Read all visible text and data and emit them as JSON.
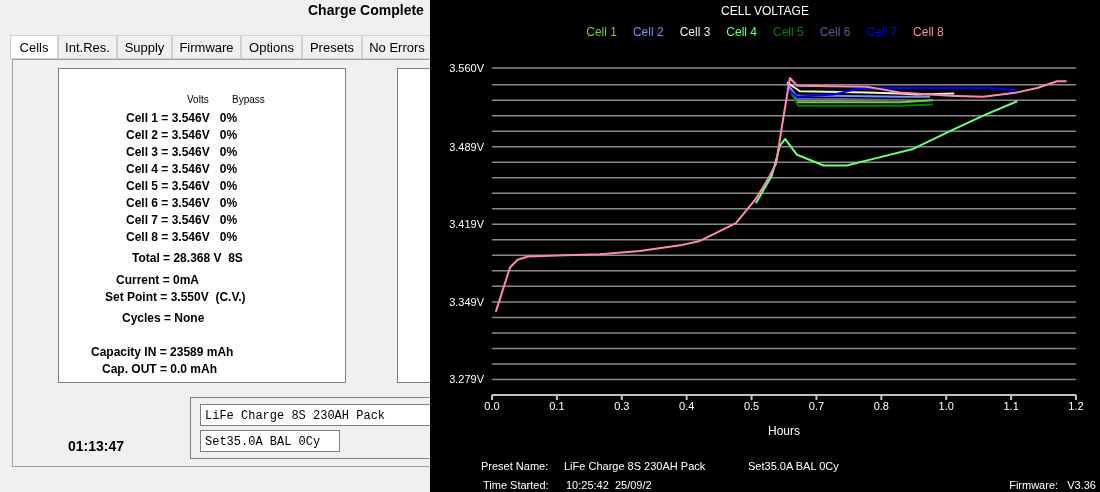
{
  "chart_data": [
    {
      "type": "other",
      "title": "Charge Complete",
      "annotations": [
        "Cells",
        "Int.Res.",
        "Supply",
        "Firmware",
        "Options",
        "Presets",
        "No Errors",
        "Volts",
        "Bypass",
        "Cell 1 = 3.546V   0%",
        "Cell 2 = 3.546V   0%",
        "Cell 3 = 3.546V   0%",
        "Cell 4 = 3.546V   0%",
        "Cell 5 = 3.546V   0%",
        "Cell 6 = 3.546V   0%",
        "Cell 7 = 3.546V   0%",
        "Cell 8 = 3.546V   0%",
        "Total = 28.368 V  8S",
        "Current = 0mA",
        "Set Point = 3.550V  (C.V.)",
        "Cycles = None",
        "Capacity IN = 23589 mAh",
        "Cap. OUT = 0.0 mAh",
        "LiFe Charge 8S 230AH Pack",
        "Set35.0A BAL 0Cy",
        "01:13:47"
      ]
    },
    {
      "type": "line",
      "title": "CELL VOLTAGE",
      "xlabel": "Hours",
      "legend": "top",
      "grid": "y",
      "xlim": [
        0,
        1.233
      ],
      "xticks": [
        {
          "value": 0,
          "label": "0.0"
        },
        {
          "value": 0.137,
          "label": "0.1"
        },
        {
          "value": 0.274,
          "label": "0.3"
        },
        {
          "value": 0.411,
          "label": "0.4"
        },
        {
          "value": 0.548,
          "label": "0.5"
        },
        {
          "value": 0.685,
          "label": "0.7"
        },
        {
          "value": 0.822,
          "label": "0.8"
        },
        {
          "value": 0.959,
          "label": "1.0"
        },
        {
          "value": 1.096,
          "label": "1.1"
        },
        {
          "value": 1.233,
          "label": "1.2"
        }
      ],
      "ylim": [
        3.265,
        3.56
      ],
      "yticks": [
        {
          "value": 3.279,
          "label": "3.279V"
        },
        {
          "value": 3.293,
          "label": null
        },
        {
          "value": 3.307,
          "label": null
        },
        {
          "value": 3.321,
          "label": null
        },
        {
          "value": 3.335,
          "label": null
        },
        {
          "value": 3.349,
          "label": "3.349V"
        },
        {
          "value": 3.363,
          "label": null
        },
        {
          "value": 3.377,
          "label": null
        },
        {
          "value": 3.391,
          "label": null
        },
        {
          "value": 3.405,
          "label": null
        },
        {
          "value": 3.419,
          "label": "3.419V"
        },
        {
          "value": 3.433,
          "label": null
        },
        {
          "value": 3.447,
          "label": null
        },
        {
          "value": 3.461,
          "label": null
        },
        {
          "value": 3.475,
          "label": null
        },
        {
          "value": 3.489,
          "label": "3.489V"
        },
        {
          "value": 3.503,
          "label": null
        },
        {
          "value": 3.517,
          "label": null
        },
        {
          "value": 3.531,
          "label": null
        },
        {
          "value": 3.545,
          "label": null
        },
        {
          "value": 3.56,
          "label": "3.560V"
        }
      ],
      "annotations": [
        "Preset Name:",
        "LiFe Charge 8S 230AH Pack",
        "Set35.0A BAL 0Cy",
        "Time Started:",
        "10:25:42  25/09/2",
        "Firmware:   V3.36"
      ],
      "series": [
        {
          "name": "Cell 1",
          "color": "#7ccd32",
          "x": [
            0.625,
            0.644,
            0.72,
            0.861,
            0.931
          ],
          "values": [
            3.544,
            3.529,
            3.529,
            3.529,
            3.531
          ]
        },
        {
          "name": "Cell 2",
          "color": "#7b8fe8",
          "x": [
            0.623,
            0.642,
            0.72,
            0.861,
            0.925
          ],
          "values": [
            3.546,
            3.535,
            3.535,
            3.534,
            3.534
          ]
        },
        {
          "name": "Cell 3",
          "color": "#f0f0e0",
          "x": [
            0.623,
            0.65,
            0.791,
            0.861,
            0.897,
            0.976
          ],
          "values": [
            3.547,
            3.539,
            3.538,
            3.537,
            3.536,
            3.537
          ]
        },
        {
          "name": "Cell 4",
          "color": "#66ff80",
          "x": [
            0.557,
            0.591,
            0.608,
            0.619,
            0.643,
            0.7,
            0.749,
            0.805,
            0.889,
            0.967,
            1.037,
            1.109
          ],
          "values": [
            3.438,
            3.463,
            3.49,
            3.496,
            3.482,
            3.472,
            3.472,
            3.478,
            3.487,
            3.503,
            3.517,
            3.53
          ]
        },
        {
          "name": "Cell 5",
          "color": "#008000",
          "x": [
            0.627,
            0.647,
            0.72,
            0.861,
            0.931
          ],
          "values": [
            3.541,
            3.526,
            3.526,
            3.526,
            3.527
          ]
        },
        {
          "name": "Cell 6",
          "color": "#5a5aa0",
          "x": [
            0.624,
            0.645,
            0.74,
            0.873
          ],
          "values": [
            3.543,
            3.532,
            3.532,
            3.531
          ]
        },
        {
          "name": "Cell 7",
          "color": "#0000ff",
          "x": [
            0.621,
            0.644,
            0.72,
            0.771,
            0.825,
            1.051,
            1.109
          ],
          "values": [
            3.542,
            3.534,
            3.536,
            3.541,
            3.542,
            3.542,
            3.54
          ]
        },
        {
          "name": "Cell 8",
          "color": "#ff88b0",
          "x": [
            0.008,
            0.038,
            0.054,
            0.076,
            0.154,
            0.228,
            0.312,
            0.397,
            0.439,
            0.515,
            0.557,
            0.583,
            0.6,
            0.612,
            0.629,
            0.644,
            0.791,
            0.861,
            0.967,
            1.037,
            1.109,
            1.151,
            1.193,
            1.213
          ],
          "values": [
            3.34,
            3.38,
            3.387,
            3.39,
            3.391,
            3.392,
            3.395,
            3.4,
            3.404,
            3.42,
            3.442,
            3.46,
            3.474,
            3.507,
            3.551,
            3.544,
            3.543,
            3.538,
            3.535,
            3.534,
            3.538,
            3.542,
            3.548,
            3.548
          ]
        }
      ]
    }
  ]
}
